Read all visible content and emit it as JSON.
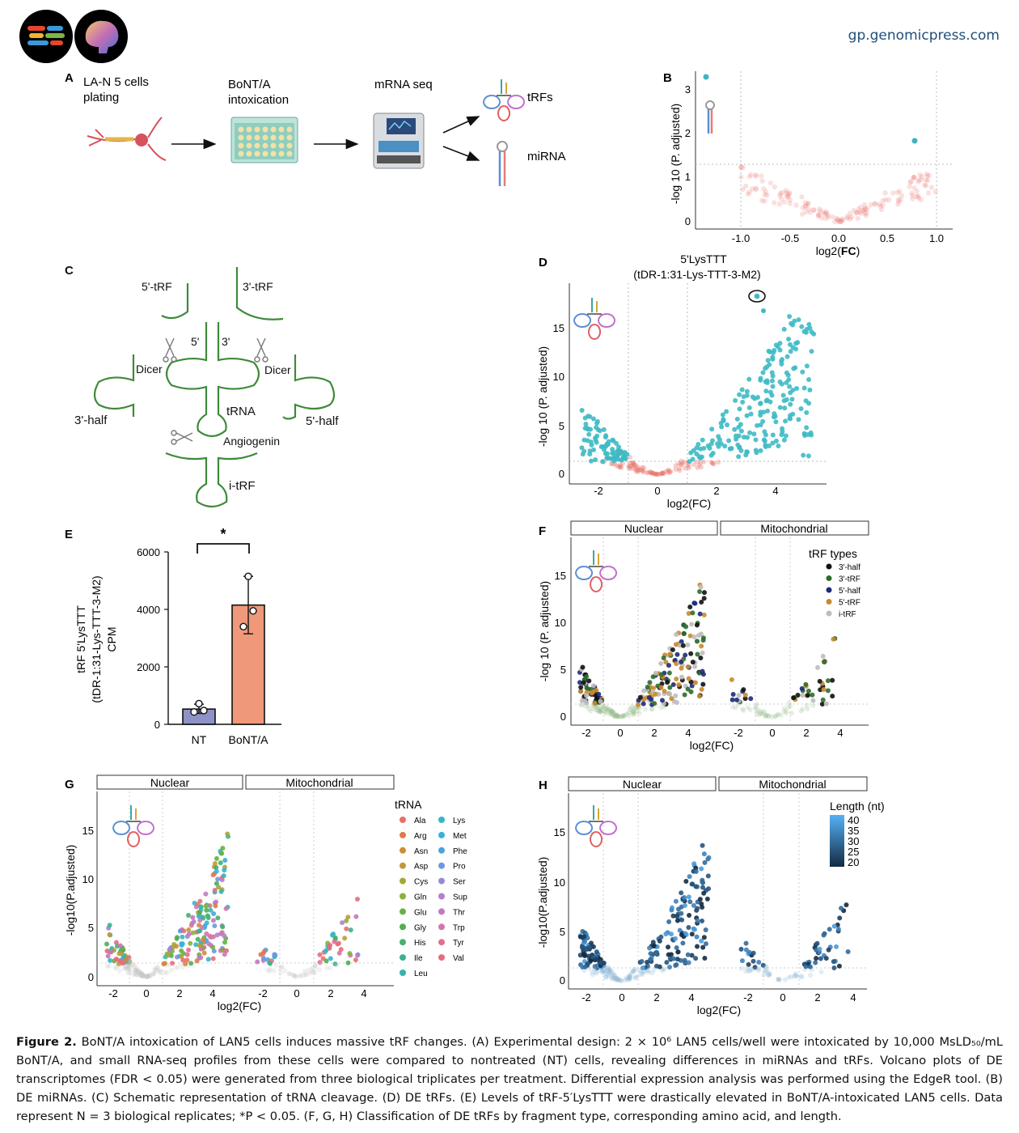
{
  "header": {
    "site": "gp.genomicpress.com"
  },
  "panelA": {
    "label": "A",
    "step1": [
      "LA-N 5 cells",
      "plating"
    ],
    "step2": [
      "BoNT/A",
      "intoxication"
    ],
    "step3": "mRNA seq",
    "out1": "tRFs",
    "out2": "miRNA"
  },
  "panelC": {
    "label": "C",
    "frag5": "5'-tRF",
    "frag3": "3'-tRF",
    "five": "5'",
    "three": "3'",
    "dicer": "Dicer",
    "trna": "tRNA",
    "half3": "3'-half",
    "half5": "5'-half",
    "angiogenin": "Angiogenin",
    "itrf": "i-tRF"
  },
  "panelB": {
    "label": "B",
    "xlabel_prefix": "log2(",
    "xlabel_bold": "FC",
    "xlabel_suffix": ")",
    "ylabel": "-log 10 (P. adjusted)",
    "xticks": [
      "-1.0",
      "-0.5",
      "0.0",
      "0.5",
      "1.0"
    ],
    "yticks": [
      "0",
      "1",
      "2",
      "3"
    ]
  },
  "panelD": {
    "label": "D",
    "title": [
      "5'LysTTT",
      "(tDR-1:31-Lys-TTT-3-M2)"
    ],
    "xlabel": "log2(FC)",
    "ylabel": "-log 10 (P. adjusted)",
    "xticks": [
      "-2",
      "0",
      "2",
      "4"
    ],
    "yticks": [
      "0",
      "5",
      "10",
      "15"
    ]
  },
  "panelE": {
    "label": "E",
    "ylabel": [
      "tRF 5'LysTTT",
      "(tDR-1:31-Lys-TTT-3-M2)",
      "CPM"
    ],
    "significance": "*"
  },
  "panelF": {
    "label": "F",
    "facets": [
      "Nuclear",
      "Mitochondrial"
    ],
    "xlabel": "log2(FC)",
    "ylabel": "-log 10 (P. adjusted)",
    "xticks": [
      "-2",
      "0",
      "2",
      "4"
    ],
    "yticks": [
      "0",
      "5",
      "10",
      "15"
    ],
    "legend_title": "tRF types",
    "legend": [
      {
        "name": "3'-half",
        "color": "#111111"
      },
      {
        "name": "3'-tRF",
        "color": "#2e6b2e"
      },
      {
        "name": "5'-half",
        "color": "#1e2a78"
      },
      {
        "name": "5'-tRF",
        "color": "#c98a2e"
      },
      {
        "name": "i-tRF",
        "color": "#bdbdbd"
      }
    ]
  },
  "panelG": {
    "label": "G",
    "facets": [
      "Nuclear",
      "Mitochondrial"
    ],
    "xlabel": "log2(FC)",
    "ylabel": "-log10(P.adjusted)",
    "xticks": [
      "-2",
      "0",
      "2",
      "4"
    ],
    "yticks": [
      "0",
      "5",
      "10",
      "15"
    ],
    "legend_title": "tRNA",
    "legend_col1": [
      {
        "name": "Ala",
        "color": "#e8706a"
      },
      {
        "name": "Arg",
        "color": "#e07b4a"
      },
      {
        "name": "Asn",
        "color": "#cc8d3a"
      },
      {
        "name": "Asp",
        "color": "#bf9a3a"
      },
      {
        "name": "Cys",
        "color": "#a6a634"
      },
      {
        "name": "Gln",
        "color": "#8bb03c"
      },
      {
        "name": "Glu",
        "color": "#66b045"
      },
      {
        "name": "Gly",
        "color": "#4fae54"
      },
      {
        "name": "His",
        "color": "#45b06e"
      },
      {
        "name": "Ile",
        "color": "#3ab18f"
      },
      {
        "name": "Leu",
        "color": "#37b3aa"
      }
    ],
    "legend_col2": [
      {
        "name": "Lys",
        "color": "#35b7c4"
      },
      {
        "name": "Met",
        "color": "#36b2d8"
      },
      {
        "name": "Phe",
        "color": "#45a5e0"
      },
      {
        "name": "Pro",
        "color": "#6e97dd"
      },
      {
        "name": "Ser",
        "color": "#968ad8"
      },
      {
        "name": "Sup",
        "color": "#b47fcf"
      },
      {
        "name": "Thr",
        "color": "#c777c0"
      },
      {
        "name": "Trp",
        "color": "#d773ad"
      },
      {
        "name": "Tyr",
        "color": "#e06f96"
      },
      {
        "name": "Val",
        "color": "#e56b80"
      }
    ]
  },
  "panelH": {
    "label": "H",
    "facets": [
      "Nuclear",
      "Mitochondrial"
    ],
    "xlabel": "log2(FC)",
    "ylabel": "-log10(P.adjusted)",
    "xticks": [
      "-2",
      "0",
      "2",
      "4"
    ],
    "yticks": [
      "0",
      "5",
      "10",
      "15"
    ],
    "legend_title": "Length (nt)",
    "legend_ticks": [
      "40",
      "35",
      "30",
      "25",
      "20"
    ]
  },
  "chart_data": [
    {
      "type": "bar",
      "panel": "E",
      "categories": [
        "NT",
        "BoNT/A"
      ],
      "values": [
        530,
        4150
      ],
      "error": [
        [
          380,
          700
        ],
        [
          3150,
          5150
        ]
      ],
      "points": [
        [
          430,
          480,
          720
        ],
        [
          3400,
          3950,
          5150
        ]
      ],
      "bar_colors": [
        "#8e92c6",
        "#f0987a"
      ],
      "ylim": [
        0,
        6000
      ],
      "yticks": [
        "0",
        "2000",
        "4000",
        "6000"
      ]
    },
    {
      "type": "scatter",
      "panel": "B",
      "highlight": [
        {
          "x": -1.35,
          "y": 3.27
        },
        {
          "x": 0.78,
          "y": 1.88
        }
      ],
      "xlim": [
        -1.2,
        1.2
      ],
      "ylim": [
        -0.1,
        3.4
      ]
    }
  ],
  "caption": {
    "title": "Figure 2.",
    "text": " BoNT/A intoxication of LAN5 cells induces massive tRF changes. (A) Experimental design: 2 × 10⁶ LAN5 cells/well were intoxicated by 10,000 MsLD₅₀/mL BoNT/A, and small RNA-seq profiles from these cells were compared to nontreated (NT) cells, revealing differences in miRNAs and tRFs. Volcano plots of DE transcriptomes (FDR < 0.05) were generated from three biological triplicates per treatment. Differential expression analysis was performed using the EdgeR tool. (B) DE miRNAs. (C) Schematic representation of tRNA cleavage. (D) DE tRFs. (E) Levels of tRF-5′LysTTT were drastically elevated in BoNT/A-intoxicated LAN5 cells. Data represent N = 3 biological replicates; *P < 0.05. (F, G, H) Classification of DE tRFs by fragment type, corresponding amino acid, and length."
  }
}
